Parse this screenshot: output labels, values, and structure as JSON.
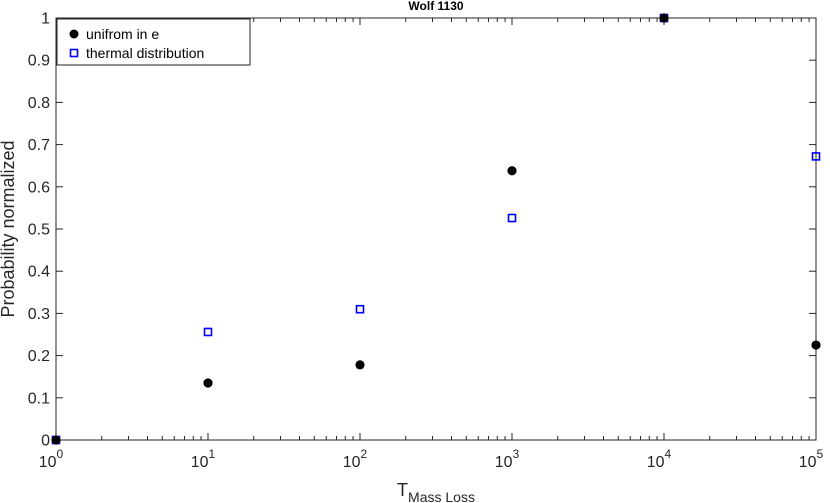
{
  "chart_data": {
    "type": "scatter",
    "title": "Wolf 1130",
    "xlabel": "T",
    "xlabel_subscript": "Mass Loss",
    "ylabel": "Probability normalized",
    "xscale": "log",
    "xlim": [
      1,
      100000
    ],
    "ylim": [
      0,
      1
    ],
    "xticks": [
      {
        "value": 1,
        "base": "10",
        "exp": "0"
      },
      {
        "value": 10,
        "base": "10",
        "exp": "1"
      },
      {
        "value": 100,
        "base": "10",
        "exp": "2"
      },
      {
        "value": 1000,
        "base": "10",
        "exp": "3"
      },
      {
        "value": 10000,
        "base": "10",
        "exp": "4"
      },
      {
        "value": 100000,
        "base": "10",
        "exp": "5"
      }
    ],
    "yticks": [
      {
        "value": 0,
        "label": "0"
      },
      {
        "value": 0.1,
        "label": "0.1"
      },
      {
        "value": 0.2,
        "label": "0.2"
      },
      {
        "value": 0.3,
        "label": "0.3"
      },
      {
        "value": 0.4,
        "label": "0.4"
      },
      {
        "value": 0.5,
        "label": "0.5"
      },
      {
        "value": 0.6,
        "label": "0.6"
      },
      {
        "value": 0.7,
        "label": "0.7"
      },
      {
        "value": 0.8,
        "label": "0.8"
      },
      {
        "value": 0.9,
        "label": "0.9"
      },
      {
        "value": 1,
        "label": "1"
      }
    ],
    "legend_position": "top-left",
    "grid": false,
    "series": [
      {
        "name": "unifrom in e",
        "marker": "filled-circle",
        "color": "#000000",
        "x": [
          1,
          10,
          100,
          1000,
          10000,
          100000
        ],
        "y": [
          0,
          0.135,
          0.178,
          0.638,
          1,
          0.225
        ]
      },
      {
        "name": "thermal distribution",
        "marker": "open-square",
        "color": "#0000ff",
        "x": [
          1,
          10,
          100,
          1000,
          10000,
          100000
        ],
        "y": [
          0,
          0.256,
          0.31,
          0.526,
          1,
          0.672
        ]
      }
    ]
  }
}
